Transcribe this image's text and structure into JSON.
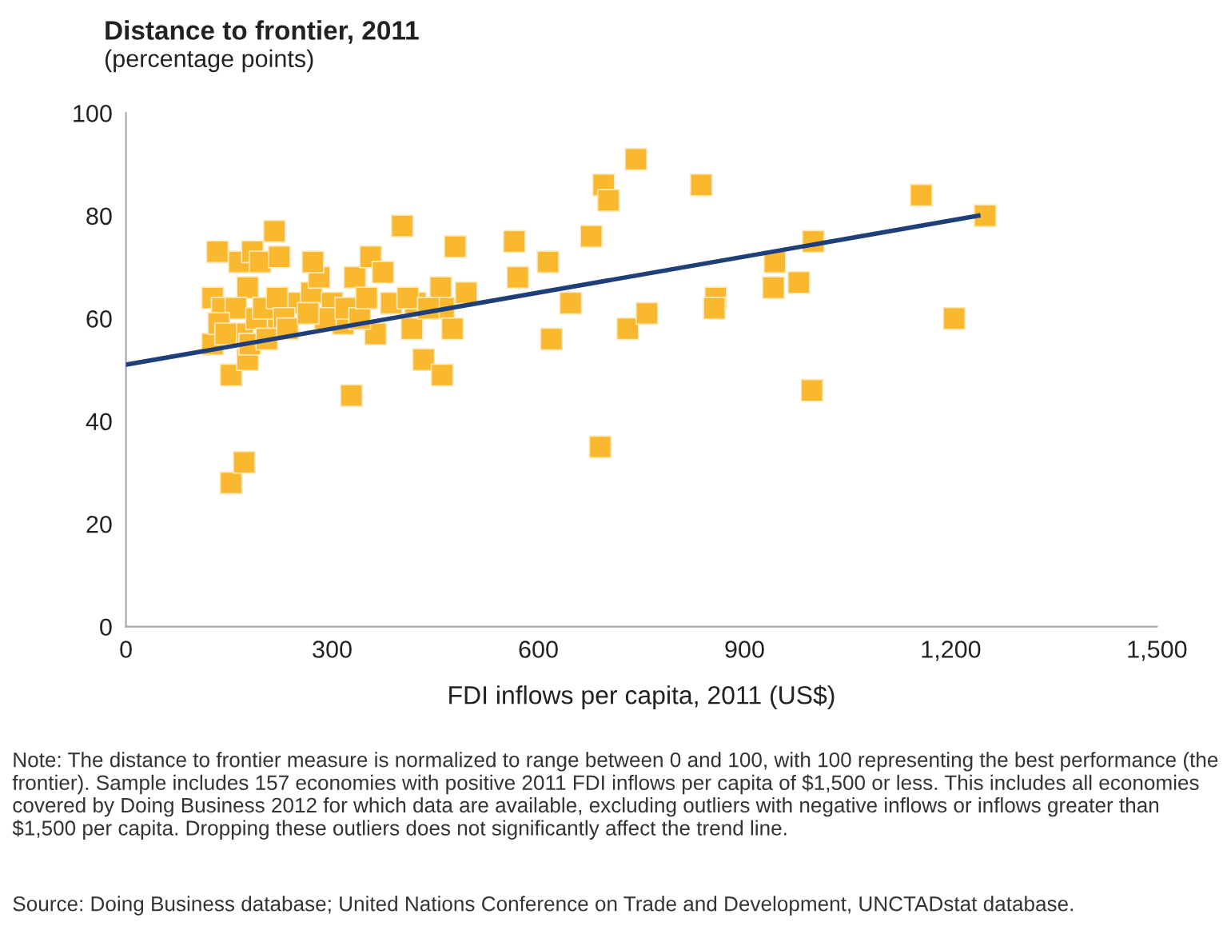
{
  "chart_data": {
    "type": "scatter",
    "title": "Distance to frontier, 2011",
    "subtitle": "(percentage points)",
    "xlabel": "FDI inflows per capita, 2011 (US$)",
    "xlim": [
      0,
      1500
    ],
    "xticks": [
      0,
      300,
      600,
      900,
      {
        "value": 1200,
        "label": "1,200"
      },
      {
        "value": 1500,
        "label": "1,500"
      }
    ],
    "ylim": [
      0,
      100
    ],
    "yticks": [
      0,
      20,
      40,
      60,
      80,
      100
    ],
    "grid": false,
    "marker": "square",
    "series": [
      {
        "color": "#f9b82e",
        "x": [
          126,
          126,
          133,
          140,
          153,
          153,
          172,
          165,
          177,
          177,
          184,
          195,
          216,
          223,
          212,
          247,
          270,
          281,
          272,
          300,
          316,
          328,
          333,
          356,
          374,
          363,
          402,
          386,
          421,
          416,
          433,
          460,
          458,
          479,
          462,
          495,
          565,
          570,
          614,
          619,
          647,
          677,
          690,
          695,
          702,
          730,
          758,
          742,
          837,
          858,
          856,
          944,
          942,
          979,
          998,
          1000,
          1157,
          1205,
          1250,
          160,
          170,
          180,
          190,
          200,
          220,
          230,
          290,
          320,
          340,
          350,
          410,
          440,
          475,
          135,
          145,
          205,
          235,
          265
        ],
        "values": [
          64,
          55,
          73,
          62,
          49,
          28,
          32,
          71,
          66,
          52,
          73,
          71,
          77,
          72,
          60,
          63,
          65,
          68,
          71,
          63,
          59,
          45,
          68,
          72,
          69,
          57,
          78,
          63,
          63,
          58,
          52,
          49,
          66,
          74,
          62,
          65,
          75,
          68,
          71,
          56,
          63,
          76,
          35,
          86,
          83,
          58,
          61,
          91,
          86,
          64,
          62,
          71,
          66,
          67,
          46,
          75,
          84,
          60,
          80,
          62,
          57,
          55,
          60,
          62,
          64,
          60,
          60,
          62,
          60,
          64,
          64,
          62,
          58,
          59,
          57,
          56,
          58,
          61
        ]
      },
      {
        "type": "line",
        "color": "#1f3f7a",
        "marker": "none",
        "line_style": "solid",
        "x": [
          0,
          1240
        ],
        "values": [
          51,
          80
        ]
      }
    ],
    "annotations": [
      "Note: The distance to frontier measure is normalized to range between 0 and 100, with 100 representing the best performance (the frontier). Sample includes 157 economies with positive 2011 FDI inflows per capita of $1,500 or less. This includes all economies covered by Doing Business 2012 for which data are available, excluding outliers with negative inflows or inflows greater than $1,500 per capita. Dropping these outliers does not significantly affect the trend line.",
      "Source: Doing Business database; United Nations Conference on Trade and Development, UNCTADstat database."
    ]
  }
}
